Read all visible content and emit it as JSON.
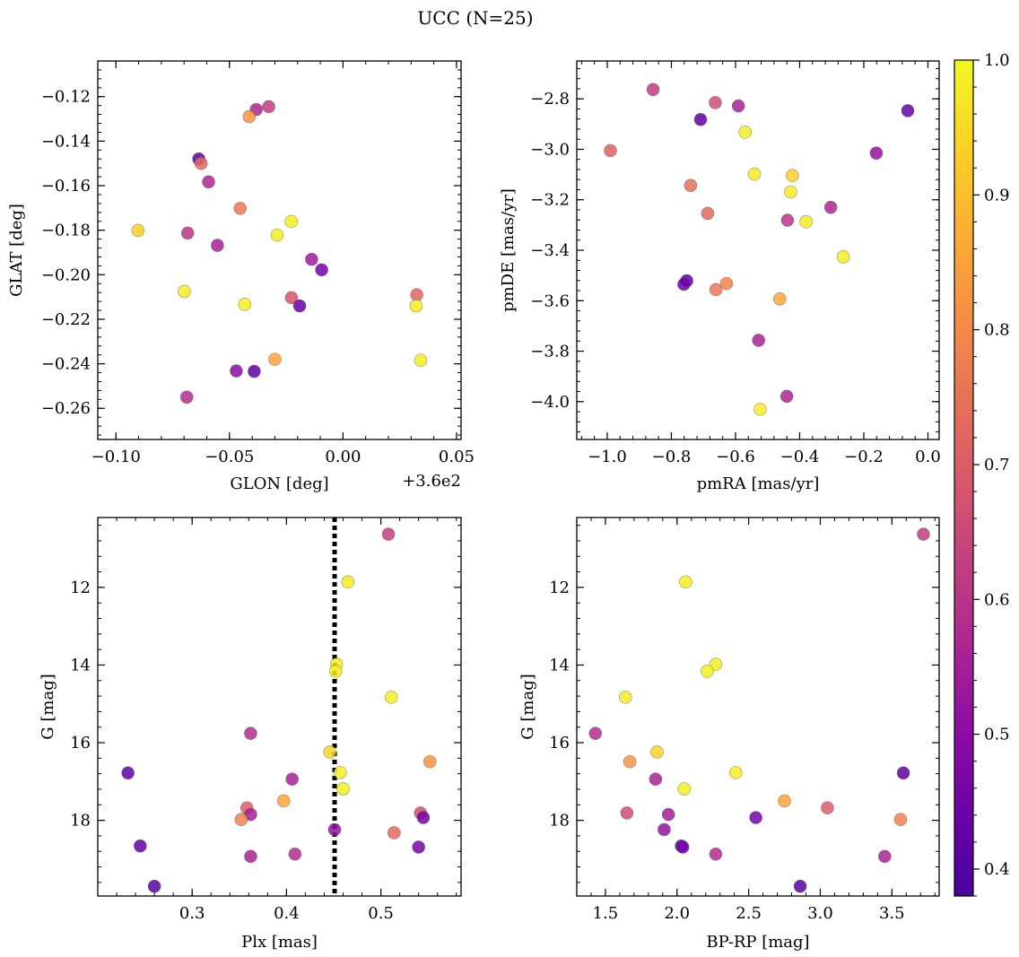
{
  "figure": {
    "title": "UCC (N=25)"
  },
  "colorbar": {
    "cmap": "plasma",
    "range": [
      0.38,
      1.0
    ],
    "ticks": [
      0.4,
      0.5,
      0.6,
      0.7,
      0.8,
      0.9,
      1.0
    ],
    "tick_labels": [
      "0.4",
      "0.5",
      "0.6",
      "0.7",
      "0.8",
      "0.9",
      "1.0"
    ]
  },
  "chart_data": [
    {
      "type": "scatter",
      "xlabel": "GLON [deg]",
      "ylabel": "GLAT [deg]",
      "offset_text": "+3.6e2",
      "xlim": [
        -0.108,
        0.052
      ],
      "ylim": [
        -0.274,
        -0.104
      ],
      "y_inverted": false,
      "xticks": [
        -0.1,
        -0.05,
        0.0,
        0.05
      ],
      "xtick_labels": [
        "−0.10",
        "−0.05",
        "0.00",
        "0.05"
      ],
      "yticks": [
        -0.26,
        -0.24,
        -0.22,
        -0.2,
        -0.18,
        -0.16,
        -0.14,
        -0.12
      ],
      "ytick_labels": [
        "−0.26",
        "−0.24",
        "−0.22",
        "−0.20",
        "−0.18",
        "−0.16",
        "−0.14",
        "−0.12"
      ],
      "points": [
        {
          "x": -0.0635,
          "y": -0.148,
          "c": 0.4
        },
        {
          "x": -0.0625,
          "y": -0.15,
          "c": 0.73
        },
        {
          "x": -0.0382,
          "y": -0.1258,
          "c": 0.57
        },
        {
          "x": -0.0327,
          "y": -0.1245,
          "c": 0.62
        },
        {
          "x": -0.0413,
          "y": -0.129,
          "c": 0.82
        },
        {
          "x": -0.0592,
          "y": -0.1583,
          "c": 0.57
        },
        {
          "x": -0.0453,
          "y": -0.1702,
          "c": 0.76
        },
        {
          "x": -0.0903,
          "y": -0.1801,
          "c": 0.93
        },
        {
          "x": -0.0684,
          "y": -0.1813,
          "c": 0.6
        },
        {
          "x": -0.0553,
          "y": -0.1868,
          "c": 0.55
        },
        {
          "x": -0.0228,
          "y": -0.1761,
          "c": 0.98
        },
        {
          "x": -0.029,
          "y": -0.1822,
          "c": 0.98
        },
        {
          "x": -0.0138,
          "y": -0.1931,
          "c": 0.54
        },
        {
          "x": -0.0094,
          "y": -0.1978,
          "c": 0.45
        },
        {
          "x": -0.0699,
          "y": -0.2075,
          "c": 0.98
        },
        {
          "x": -0.0227,
          "y": -0.2103,
          "c": 0.68
        },
        {
          "x": -0.0433,
          "y": -0.2133,
          "c": 0.98
        },
        {
          "x": -0.0191,
          "y": -0.214,
          "c": 0.43
        },
        {
          "x": 0.0325,
          "y": -0.209,
          "c": 0.72
        },
        {
          "x": 0.0322,
          "y": -0.214,
          "c": 0.98
        },
        {
          "x": 0.0342,
          "y": -0.2384,
          "c": 0.98
        },
        {
          "x": -0.03,
          "y": -0.238,
          "c": 0.85
        },
        {
          "x": -0.047,
          "y": -0.2432,
          "c": 0.5
        },
        {
          "x": -0.0391,
          "y": -0.2434,
          "c": 0.42
        },
        {
          "x": -0.0688,
          "y": -0.255,
          "c": 0.58
        }
      ]
    },
    {
      "type": "scatter",
      "xlabel": "pmRA [mas/yr]",
      "ylabel": "pmDE [mas/yr]",
      "xlim": [
        -1.095,
        0.035
      ],
      "ylim": [
        -4.15,
        -2.65
      ],
      "y_inverted": false,
      "xticks": [
        -1.0,
        -0.8,
        -0.6,
        -0.4,
        -0.2,
        0.0
      ],
      "xtick_labels": [
        "−1.0",
        "−0.8",
        "−0.6",
        "−0.4",
        "−0.2",
        "0.0"
      ],
      "yticks": [
        -4.0,
        -3.8,
        -3.6,
        -3.4,
        -3.2,
        -3.0,
        -2.8
      ],
      "ytick_labels": [
        "−4.0",
        "−3.8",
        "−3.6",
        "−3.4",
        "−3.2",
        "−3.0",
        "−2.8"
      ],
      "points": [
        {
          "x": -0.857,
          "y": -2.763,
          "c": 0.62
        },
        {
          "x": -0.663,
          "y": -2.815,
          "c": 0.66
        },
        {
          "x": -0.591,
          "y": -2.828,
          "c": 0.56
        },
        {
          "x": -0.709,
          "y": -2.882,
          "c": 0.42
        },
        {
          "x": -0.063,
          "y": -2.847,
          "c": 0.43
        },
        {
          "x": -0.57,
          "y": -2.932,
          "c": 0.98
        },
        {
          "x": -0.99,
          "y": -3.005,
          "c": 0.71
        },
        {
          "x": -0.161,
          "y": -3.015,
          "c": 0.52
        },
        {
          "x": -0.541,
          "y": -3.098,
          "c": 0.98
        },
        {
          "x": -0.423,
          "y": -3.104,
          "c": 0.93
        },
        {
          "x": -0.74,
          "y": -3.143,
          "c": 0.74
        },
        {
          "x": -0.428,
          "y": -3.169,
          "c": 0.98
        },
        {
          "x": -0.687,
          "y": -3.254,
          "c": 0.73
        },
        {
          "x": -0.303,
          "y": -3.23,
          "c": 0.57
        },
        {
          "x": -0.438,
          "y": -3.281,
          "c": 0.6
        },
        {
          "x": -0.38,
          "y": -3.287,
          "c": 0.98
        },
        {
          "x": -0.264,
          "y": -3.426,
          "c": 0.98
        },
        {
          "x": -0.752,
          "y": -3.521,
          "c": 0.42
        },
        {
          "x": -0.761,
          "y": -3.535,
          "c": 0.44
        },
        {
          "x": -0.661,
          "y": -3.556,
          "c": 0.76
        },
        {
          "x": -0.628,
          "y": -3.532,
          "c": 0.79
        },
        {
          "x": -0.462,
          "y": -3.593,
          "c": 0.86
        },
        {
          "x": -0.528,
          "y": -3.757,
          "c": 0.56
        },
        {
          "x": -0.44,
          "y": -3.979,
          "c": 0.57
        },
        {
          "x": -0.523,
          "y": -4.03,
          "c": 0.98
        }
      ]
    },
    {
      "type": "scatter",
      "xlabel": "Plx [mas]",
      "ylabel": "G [mag]",
      "xlim": [
        0.2,
        0.585
      ],
      "ylim": [
        19.95,
        10.2
      ],
      "y_inverted": true,
      "vline": {
        "x": 0.451,
        "style": "dotted",
        "color": "#000000"
      },
      "xticks": [
        0.3,
        0.4,
        0.5
      ],
      "xtick_labels": [
        "0.3",
        "0.4",
        "0.5"
      ],
      "yticks": [
        12,
        14,
        16,
        18
      ],
      "ytick_labels": [
        "12",
        "14",
        "16",
        "18"
      ],
      "points": [
        {
          "x": 0.508,
          "y": 10.63,
          "c": 0.62
        },
        {
          "x": 0.465,
          "y": 11.86,
          "c": 0.98
        },
        {
          "x": 0.453,
          "y": 13.98,
          "c": 0.98
        },
        {
          "x": 0.452,
          "y": 14.16,
          "c": 0.98
        },
        {
          "x": 0.511,
          "y": 14.83,
          "c": 0.98
        },
        {
          "x": 0.362,
          "y": 15.76,
          "c": 0.58
        },
        {
          "x": 0.446,
          "y": 16.24,
          "c": 0.94
        },
        {
          "x": 0.552,
          "y": 16.49,
          "c": 0.82
        },
        {
          "x": 0.232,
          "y": 16.78,
          "c": 0.42
        },
        {
          "x": 0.457,
          "y": 16.77,
          "c": 0.98
        },
        {
          "x": 0.406,
          "y": 16.94,
          "c": 0.56
        },
        {
          "x": 0.46,
          "y": 17.19,
          "c": 0.98
        },
        {
          "x": 0.397,
          "y": 17.5,
          "c": 0.85
        },
        {
          "x": 0.358,
          "y": 17.68,
          "c": 0.7
        },
        {
          "x": 0.542,
          "y": 17.81,
          "c": 0.66
        },
        {
          "x": 0.362,
          "y": 17.85,
          "c": 0.55
        },
        {
          "x": 0.545,
          "y": 17.93,
          "c": 0.46
        },
        {
          "x": 0.352,
          "y": 17.98,
          "c": 0.78
        },
        {
          "x": 0.451,
          "y": 18.24,
          "c": 0.52
        },
        {
          "x": 0.514,
          "y": 18.32,
          "c": 0.73
        },
        {
          "x": 0.245,
          "y": 18.66,
          "c": 0.43
        },
        {
          "x": 0.54,
          "y": 18.69,
          "c": 0.46
        },
        {
          "x": 0.409,
          "y": 18.87,
          "c": 0.58
        },
        {
          "x": 0.362,
          "y": 18.93,
          "c": 0.56
        },
        {
          "x": 0.26,
          "y": 19.7,
          "c": 0.41
        }
      ]
    },
    {
      "type": "scatter",
      "xlabel": "BP-RP [mag]",
      "ylabel": "G [mag]",
      "xlim": [
        1.3,
        3.83
      ],
      "ylim": [
        19.95,
        10.2
      ],
      "y_inverted": true,
      "xticks": [
        1.5,
        2.0,
        2.5,
        3.0,
        3.5
      ],
      "xtick_labels": [
        "1.5",
        "2.0",
        "2.5",
        "3.0",
        "3.5"
      ],
      "yticks": [
        12,
        14,
        16,
        18
      ],
      "ytick_labels": [
        "12",
        "14",
        "16",
        "18"
      ],
      "points": [
        {
          "x": 3.72,
          "y": 10.63,
          "c": 0.62
        },
        {
          "x": 2.06,
          "y": 11.86,
          "c": 0.98
        },
        {
          "x": 2.27,
          "y": 13.98,
          "c": 0.98
        },
        {
          "x": 2.21,
          "y": 14.16,
          "c": 0.98
        },
        {
          "x": 1.64,
          "y": 14.83,
          "c": 0.98
        },
        {
          "x": 1.43,
          "y": 15.76,
          "c": 0.58
        },
        {
          "x": 1.86,
          "y": 16.24,
          "c": 0.94
        },
        {
          "x": 1.67,
          "y": 16.49,
          "c": 0.82
        },
        {
          "x": 3.58,
          "y": 16.78,
          "c": 0.42
        },
        {
          "x": 2.41,
          "y": 16.77,
          "c": 0.98
        },
        {
          "x": 1.85,
          "y": 16.94,
          "c": 0.56
        },
        {
          "x": 2.05,
          "y": 17.19,
          "c": 0.98
        },
        {
          "x": 2.75,
          "y": 17.5,
          "c": 0.85
        },
        {
          "x": 3.05,
          "y": 17.68,
          "c": 0.7
        },
        {
          "x": 1.65,
          "y": 17.81,
          "c": 0.66
        },
        {
          "x": 1.94,
          "y": 17.85,
          "c": 0.55
        },
        {
          "x": 2.55,
          "y": 17.93,
          "c": 0.46
        },
        {
          "x": 3.56,
          "y": 17.98,
          "c": 0.78
        },
        {
          "x": 1.91,
          "y": 18.24,
          "c": 0.52
        },
        {
          "x": 2.03,
          "y": 18.66,
          "c": 0.43
        },
        {
          "x": 2.04,
          "y": 18.69,
          "c": 0.46
        },
        {
          "x": 2.27,
          "y": 18.87,
          "c": 0.58
        },
        {
          "x": 3.45,
          "y": 18.93,
          "c": 0.56
        },
        {
          "x": 2.86,
          "y": 19.7,
          "c": 0.41
        }
      ]
    }
  ]
}
